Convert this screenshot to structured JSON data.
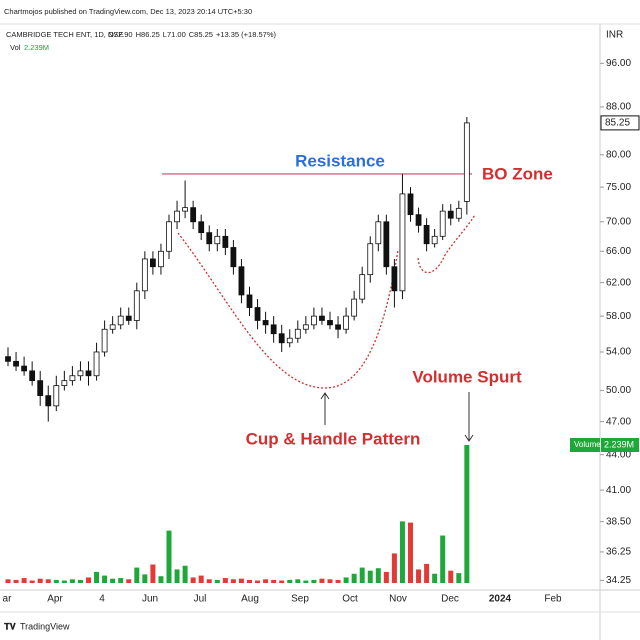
{
  "chart_data": {
    "type": "candlestick",
    "attribution": "Chartmojos published on TradingView.com, Dec 13, 2023 20:14 UTC+5:30",
    "title": "CAMBRIDGE TECH ENT, 1D, NSE",
    "ohlc": [
      "O72.90",
      "H86.25",
      "L71.00",
      "C85.25",
      "+13.35 (+18.57%)"
    ],
    "volume_label": "Vol",
    "volume_title": "Volume",
    "volume_last_label": "2.239M",
    "currency": "INR",
    "brand": "TradingView",
    "log_scale": true,
    "grid": false,
    "up_color": "#ffffff",
    "down_color": "#111111",
    "volume_up_color": "#1fa83a",
    "volume_down_color": "#e53935",
    "resistance_level": 77,
    "resistance_color": "#d6406a",
    "ylim": [
      33.6,
      103
    ],
    "yticks": [
      {
        "value": 96,
        "label": "96.00"
      },
      {
        "value": 88,
        "label": "88.00"
      },
      {
        "value": 80,
        "label": "80.00"
      },
      {
        "value": 75,
        "label": "75.00"
      },
      {
        "value": 70,
        "label": "70.00"
      },
      {
        "value": 66,
        "label": "66.00"
      },
      {
        "value": 62,
        "label": "62.00"
      },
      {
        "value": 58,
        "label": "58.00"
      },
      {
        "value": 54,
        "label": "54.00"
      },
      {
        "value": 50,
        "label": "50.00"
      },
      {
        "value": 47,
        "label": "47.00"
      },
      {
        "value": 44,
        "label": "44.00"
      },
      {
        "value": 41,
        "label": "41.00"
      },
      {
        "value": 38.5,
        "label": "38.50"
      },
      {
        "value": 36.25,
        "label": "36.25"
      },
      {
        "value": 34.25,
        "label": "34.25"
      }
    ],
    "x_labels": [
      "ar",
      "Apr",
      "4",
      "Jun",
      "Jul",
      "Aug",
      "Sep",
      "Oct",
      "Nov",
      "Dec",
      "2024",
      "Feb"
    ],
    "annotations": [
      {
        "text": "Resistance",
        "color": "#2a6fdb"
      },
      {
        "text": "BO Zone",
        "color": "#d32f2f"
      },
      {
        "text": "Volume Spurt",
        "color": "#d32f2f"
      },
      {
        "text": "Cup & Handle Pattern",
        "color": "#d32f2f"
      }
    ],
    "open": [
      53.5,
      53,
      52.5,
      52,
      51,
      49.5,
      48.5,
      50.5,
      51,
      51.5,
      52,
      51.5,
      54,
      56.5,
      57,
      58,
      57.5,
      61,
      65,
      64,
      66,
      70,
      71.5,
      72,
      70,
      68.5,
      67,
      68,
      66.5,
      64,
      60.5,
      59,
      57.5,
      57,
      56,
      55,
      55.5,
      56.5,
      57,
      58,
      57.5,
      57,
      56.5,
      58,
      60,
      63,
      67,
      70,
      64,
      61,
      74,
      71,
      69.5,
      67,
      68,
      71.5,
      70.5,
      72.9
    ],
    "high": [
      54.5,
      54,
      53.5,
      53,
      52,
      50.5,
      51.5,
      52,
      52.5,
      53,
      53,
      55,
      57.5,
      58,
      59,
      59,
      62,
      66,
      66,
      67,
      71,
      73,
      76,
      73,
      71,
      69.5,
      69,
      69,
      67.5,
      65,
      61.5,
      60,
      58.5,
      58,
      57,
      56.5,
      57.5,
      58,
      59,
      59,
      58.5,
      58,
      59,
      61,
      64,
      68,
      71,
      71,
      65,
      77,
      75,
      72,
      70.5,
      69,
      72.5,
      72.5,
      73,
      86.25
    ],
    "low": [
      52.5,
      52,
      51.5,
      50.5,
      48.5,
      47,
      48,
      50,
      50.5,
      51,
      50.5,
      51,
      53.5,
      56,
      56.5,
      57,
      56.5,
      60,
      63,
      63,
      65,
      69,
      70.5,
      69,
      67.5,
      66,
      66,
      65.5,
      63,
      59.5,
      58,
      56.5,
      56,
      55,
      54,
      54.5,
      55,
      56,
      56.5,
      57,
      56.5,
      55.5,
      56,
      57.5,
      59.5,
      62,
      66,
      63,
      59,
      60,
      70,
      68.5,
      66,
      66.5,
      67.5,
      69.5,
      70,
      71
    ],
    "close": [
      53,
      52.5,
      52,
      51,
      49.5,
      48.5,
      50.5,
      51,
      51.5,
      52,
      51.5,
      54,
      56.5,
      57,
      58,
      57.5,
      61,
      65,
      64,
      66,
      70,
      71.5,
      72,
      70,
      68.5,
      67,
      68,
      66.5,
      64,
      60.5,
      59,
      57.5,
      57,
      56,
      55,
      55.5,
      56.5,
      57,
      58,
      57.5,
      57,
      56.5,
      58,
      60,
      63,
      67,
      70,
      64,
      61,
      74,
      71,
      69.5,
      67,
      68,
      71.5,
      70.5,
      71.9,
      85.25
    ],
    "volume": [
      60000,
      50000,
      80000,
      40000,
      70000,
      60000,
      50000,
      40000,
      60000,
      50000,
      90000,
      180000,
      120000,
      70000,
      80000,
      60000,
      250000,
      140000,
      300000,
      110000,
      850000,
      220000,
      280000,
      90000,
      120000,
      60000,
      50000,
      80000,
      60000,
      70000,
      50000,
      40000,
      60000,
      50000,
      40000,
      50000,
      60000,
      40000,
      50000,
      70000,
      60000,
      50000,
      90000,
      150000,
      250000,
      200000,
      240000,
      180000,
      480000,
      1000000,
      980000,
      220000,
      310000,
      150000,
      770000,
      200000,
      160000,
      2239000
    ]
  }
}
